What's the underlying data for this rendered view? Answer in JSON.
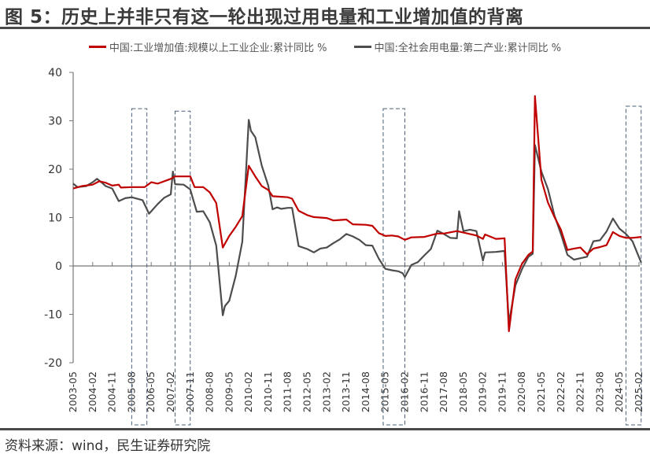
{
  "title": "图 5：历史上并非只有这一轮出现过用电量和工业增加值的背离",
  "source": "资料来源：wind，民生证券研究院",
  "colors": {
    "industrial": "#c00000",
    "electricity": "#4d4d4d",
    "box": "#4a6078",
    "axis": "#777777"
  },
  "chart_data": {
    "type": "line",
    "title": "图 5：历史上并非只有这一轮出现过用电量和工业增加值的背离",
    "xlabel": "",
    "ylabel": "",
    "ylim": [
      -20,
      40
    ],
    "yticks": [
      40,
      30,
      20,
      10,
      0,
      -10,
      -20
    ],
    "grid": false,
    "legend_position": "top",
    "xticks": [
      "2003-05",
      "2004-02",
      "2004-11",
      "2005-08",
      "2006-05",
      "2007-02",
      "2007-11",
      "2008-08",
      "2009-05",
      "2010-02",
      "2010-11",
      "2011-08",
      "2012-05",
      "2013-02",
      "2013-11",
      "2014-08",
      "2015-05",
      "2016-02",
      "2016-11",
      "2017-08",
      "2018-05",
      "2019-02",
      "2019-11",
      "2020-08",
      "2021-05",
      "2022-02",
      "2022-11",
      "2023-08",
      "2024-05",
      "2025-02"
    ],
    "highlight_boxes": [
      {
        "from": "2005-08",
        "to": "2006-03",
        "top": 32.5
      },
      {
        "from": "2007-04",
        "to": "2007-11",
        "top": 32
      },
      {
        "from": "2015-04",
        "to": "2016-02",
        "top": 32.5
      },
      {
        "from": "2024-08",
        "to": "2025-03",
        "top": 33
      }
    ],
    "series": [
      {
        "name": "中国:工业增加值:规模以上工业企业:累计同比 %",
        "color": "#c00000",
        "points": [
          [
            "2003-05",
            16.0
          ],
          [
            "2003-09",
            16.5
          ],
          [
            "2004-02",
            16.8
          ],
          [
            "2004-05",
            17.5
          ],
          [
            "2004-08",
            17.2
          ],
          [
            "2004-11",
            16.6
          ],
          [
            "2005-02",
            16.8
          ],
          [
            "2005-03",
            16.2
          ],
          [
            "2005-08",
            16.3
          ],
          [
            "2006-02",
            16.3
          ],
          [
            "2006-05",
            17.3
          ],
          [
            "2006-08",
            17.0
          ],
          [
            "2007-02",
            18.0
          ],
          [
            "2007-04",
            18.5
          ],
          [
            "2007-11",
            18.5
          ],
          [
            "2008-01",
            16.3
          ],
          [
            "2008-05",
            16.3
          ],
          [
            "2008-08",
            15.2
          ],
          [
            "2008-11",
            13.0
          ],
          [
            "2009-02",
            3.8
          ],
          [
            "2009-05",
            6.2
          ],
          [
            "2009-08",
            8.1
          ],
          [
            "2009-11",
            10.3
          ],
          [
            "2010-02",
            20.7
          ],
          [
            "2010-05",
            18.5
          ],
          [
            "2010-08",
            16.5
          ],
          [
            "2010-11",
            15.7
          ],
          [
            "2011-01",
            14.4
          ],
          [
            "2011-05",
            14.3
          ],
          [
            "2011-08",
            14.2
          ],
          [
            "2011-10",
            13.9
          ],
          [
            "2012-01",
            11.4
          ],
          [
            "2012-05",
            10.5
          ],
          [
            "2012-08",
            10.1
          ],
          [
            "2012-11",
            10.0
          ],
          [
            "2013-02",
            9.9
          ],
          [
            "2013-05",
            9.4
          ],
          [
            "2013-08",
            9.5
          ],
          [
            "2013-11",
            9.6
          ],
          [
            "2014-02",
            8.6
          ],
          [
            "2014-08",
            8.5
          ],
          [
            "2014-11",
            8.3
          ],
          [
            "2015-02",
            6.8
          ],
          [
            "2015-05",
            6.2
          ],
          [
            "2015-08",
            6.3
          ],
          [
            "2015-11",
            6.1
          ],
          [
            "2016-02",
            5.4
          ],
          [
            "2016-05",
            5.9
          ],
          [
            "2016-11",
            6.0
          ],
          [
            "2017-05",
            6.7
          ],
          [
            "2017-08",
            6.7
          ],
          [
            "2018-02",
            7.2
          ],
          [
            "2018-05",
            6.9
          ],
          [
            "2018-11",
            6.3
          ],
          [
            "2019-02",
            5.6
          ],
          [
            "2019-03",
            6.5
          ],
          [
            "2019-08",
            5.6
          ],
          [
            "2019-12",
            5.7
          ],
          [
            "2020-02",
            -13.5
          ],
          [
            "2020-05",
            -2.8
          ],
          [
            "2020-08",
            0.4
          ],
          [
            "2020-11",
            2.3
          ],
          [
            "2021-01",
            3.0
          ],
          [
            "2021-02",
            35.1
          ],
          [
            "2021-05",
            17.8
          ],
          [
            "2021-08",
            13.1
          ],
          [
            "2021-11",
            10.1
          ],
          [
            "2022-02",
            7.5
          ],
          [
            "2022-05",
            3.3
          ],
          [
            "2022-08",
            3.6
          ],
          [
            "2022-11",
            3.8
          ],
          [
            "2023-02",
            2.4
          ],
          [
            "2023-05",
            3.6
          ],
          [
            "2023-08",
            3.9
          ],
          [
            "2023-11",
            4.3
          ],
          [
            "2024-02",
            7.0
          ],
          [
            "2024-05",
            6.2
          ],
          [
            "2024-08",
            5.8
          ],
          [
            "2024-11",
            5.8
          ],
          [
            "2025-03",
            6.0
          ]
        ]
      },
      {
        "name": "中国:全社会用电量:第二产业:累计同比 %",
        "color": "#4d4d4d",
        "points": [
          [
            "2003-05",
            17.0
          ],
          [
            "2003-07",
            16.3
          ],
          [
            "2003-11",
            16.5
          ],
          [
            "2004-02",
            17.3
          ],
          [
            "2004-04",
            18.0
          ],
          [
            "2004-06",
            17.3
          ],
          [
            "2004-08",
            16.5
          ],
          [
            "2004-11",
            16.0
          ],
          [
            "2005-02",
            13.4
          ],
          [
            "2005-05",
            14.0
          ],
          [
            "2005-08",
            14.2
          ],
          [
            "2006-01",
            13.6
          ],
          [
            "2006-04",
            10.8
          ],
          [
            "2006-08",
            12.8
          ],
          [
            "2006-11",
            14.1
          ],
          [
            "2007-02",
            14.8
          ],
          [
            "2007-03",
            19.5
          ],
          [
            "2007-04",
            16.9
          ],
          [
            "2007-08",
            16.8
          ],
          [
            "2007-11",
            15.8
          ],
          [
            "2008-02",
            11.2
          ],
          [
            "2008-05",
            11.3
          ],
          [
            "2008-08",
            9.0
          ],
          [
            "2008-11",
            4.2
          ],
          [
            "2009-02",
            -10.2
          ],
          [
            "2009-03",
            -8.3
          ],
          [
            "2009-05",
            -7.2
          ],
          [
            "2009-08",
            -2.0
          ],
          [
            "2009-11",
            5.0
          ],
          [
            "2010-02",
            30.2
          ],
          [
            "2010-03",
            27.9
          ],
          [
            "2010-05",
            26.6
          ],
          [
            "2010-08",
            20.7
          ],
          [
            "2010-11",
            16.6
          ],
          [
            "2011-01",
            11.7
          ],
          [
            "2011-03",
            12.1
          ],
          [
            "2011-05",
            11.8
          ],
          [
            "2011-08",
            12.0
          ],
          [
            "2011-10",
            12.0
          ],
          [
            "2012-01",
            4.1
          ],
          [
            "2012-05",
            3.5
          ],
          [
            "2012-08",
            2.8
          ],
          [
            "2012-11",
            3.6
          ],
          [
            "2013-02",
            3.8
          ],
          [
            "2013-05",
            4.7
          ],
          [
            "2013-08",
            5.5
          ],
          [
            "2013-11",
            6.6
          ],
          [
            "2014-02",
            6.1
          ],
          [
            "2014-05",
            5.4
          ],
          [
            "2014-08",
            4.3
          ],
          [
            "2014-11",
            4.2
          ],
          [
            "2015-02",
            1.5
          ],
          [
            "2015-05",
            -0.6
          ],
          [
            "2015-08",
            -0.9
          ],
          [
            "2015-11",
            -1.1
          ],
          [
            "2016-01",
            -1.5
          ],
          [
            "2016-02",
            -2.3
          ],
          [
            "2016-05",
            0.2
          ],
          [
            "2016-08",
            0.8
          ],
          [
            "2016-11",
            2.2
          ],
          [
            "2017-02",
            3.5
          ],
          [
            "2017-05",
            7.3
          ],
          [
            "2017-08",
            6.6
          ],
          [
            "2017-11",
            5.8
          ],
          [
            "2018-02",
            5.7
          ],
          [
            "2018-03",
            11.3
          ],
          [
            "2018-05",
            7.2
          ],
          [
            "2018-08",
            7.5
          ],
          [
            "2018-11",
            7.2
          ],
          [
            "2019-02",
            1.1
          ],
          [
            "2019-03",
            2.8
          ],
          [
            "2019-08",
            2.9
          ],
          [
            "2019-12",
            3.1
          ],
          [
            "2020-02",
            -11.8
          ],
          [
            "2020-05",
            -4.0
          ],
          [
            "2020-08",
            -0.7
          ],
          [
            "2020-11",
            1.9
          ],
          [
            "2021-01",
            2.5
          ],
          [
            "2021-02",
            25.0
          ],
          [
            "2021-05",
            19.5
          ],
          [
            "2021-08",
            15.9
          ],
          [
            "2021-11",
            10.4
          ],
          [
            "2022-02",
            6.6
          ],
          [
            "2022-05",
            2.3
          ],
          [
            "2022-08",
            1.3
          ],
          [
            "2022-11",
            1.6
          ],
          [
            "2023-02",
            1.9
          ],
          [
            "2023-05",
            5.1
          ],
          [
            "2023-08",
            5.3
          ],
          [
            "2023-11",
            7.1
          ],
          [
            "2024-02",
            9.8
          ],
          [
            "2024-05",
            7.7
          ],
          [
            "2024-08",
            6.6
          ],
          [
            "2024-11",
            5.1
          ],
          [
            "2025-03",
            0.7
          ]
        ]
      }
    ]
  }
}
